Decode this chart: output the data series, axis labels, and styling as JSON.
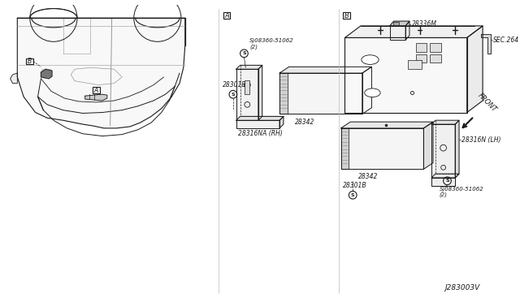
{
  "diagram_id": "J283003V",
  "bg": "#ffffff",
  "lc": "#1a1a1a",
  "fig_w": 6.4,
  "fig_h": 3.72,
  "dpi": 100,
  "labels": {
    "A": "A",
    "B": "B",
    "28336M": "28336M",
    "SEC264": "SEC.264",
    "28316N_LH": "28316N (LH)",
    "28342": "28342",
    "28316NA_RH": "28316NA (RH)",
    "28301B": "28301B",
    "screw": "S)08360-51062\n(2)",
    "FRONT": "FRONT"
  }
}
